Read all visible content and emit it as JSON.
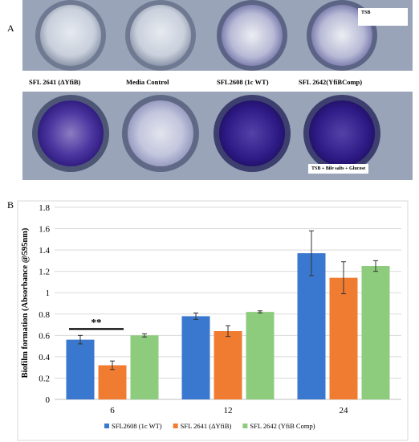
{
  "panel_a": {
    "letter": "A",
    "tag_top": "TSB",
    "tag_bottom": "TSB + Bile salts + Glucose",
    "well_labels": [
      "SFL 2641 (ΔYfiB)",
      "Media Control",
      "SFL2608 (1c WT)",
      "SFL 2642(YfiBComp)"
    ],
    "colors": {
      "stain_dark": "#2a1678",
      "stain_mid": "#5c47a8",
      "stain_light": "#b7b6d4",
      "plate_bg": "#7d8aa3"
    }
  },
  "panel_b": {
    "letter": "B"
  },
  "chart_data": {
    "type": "bar",
    "title": "",
    "xlabel": "",
    "ylabel": "Biofilm formation (Absorbance @595nm)",
    "categories": [
      "6",
      "12",
      "24"
    ],
    "ylim": [
      0,
      1.8
    ],
    "yticks": [
      "0",
      "0.2",
      "0.4",
      "0.6",
      "0.8",
      "1",
      "1.2",
      "1.4",
      "1.6",
      "1.8"
    ],
    "series": [
      {
        "name": "SFL2608 (1c WT)",
        "color": "#3a78d0",
        "values": [
          0.56,
          0.78,
          1.37
        ],
        "errors": [
          0.04,
          0.03,
          0.21
        ]
      },
      {
        "name": "SFL 2641 (ΔYfiB)",
        "color": "#f07c32",
        "values": [
          0.32,
          0.64,
          1.14
        ],
        "errors": [
          0.04,
          0.05,
          0.15
        ]
      },
      {
        "name": "SFL 2642 (YfiB Comp)",
        "color": "#8ccc7c",
        "values": [
          0.6,
          0.82,
          1.25
        ],
        "errors": [
          0.015,
          0.01,
          0.05
        ]
      }
    ],
    "annotation": "**",
    "grid": true,
    "legend_position": "bottom"
  }
}
